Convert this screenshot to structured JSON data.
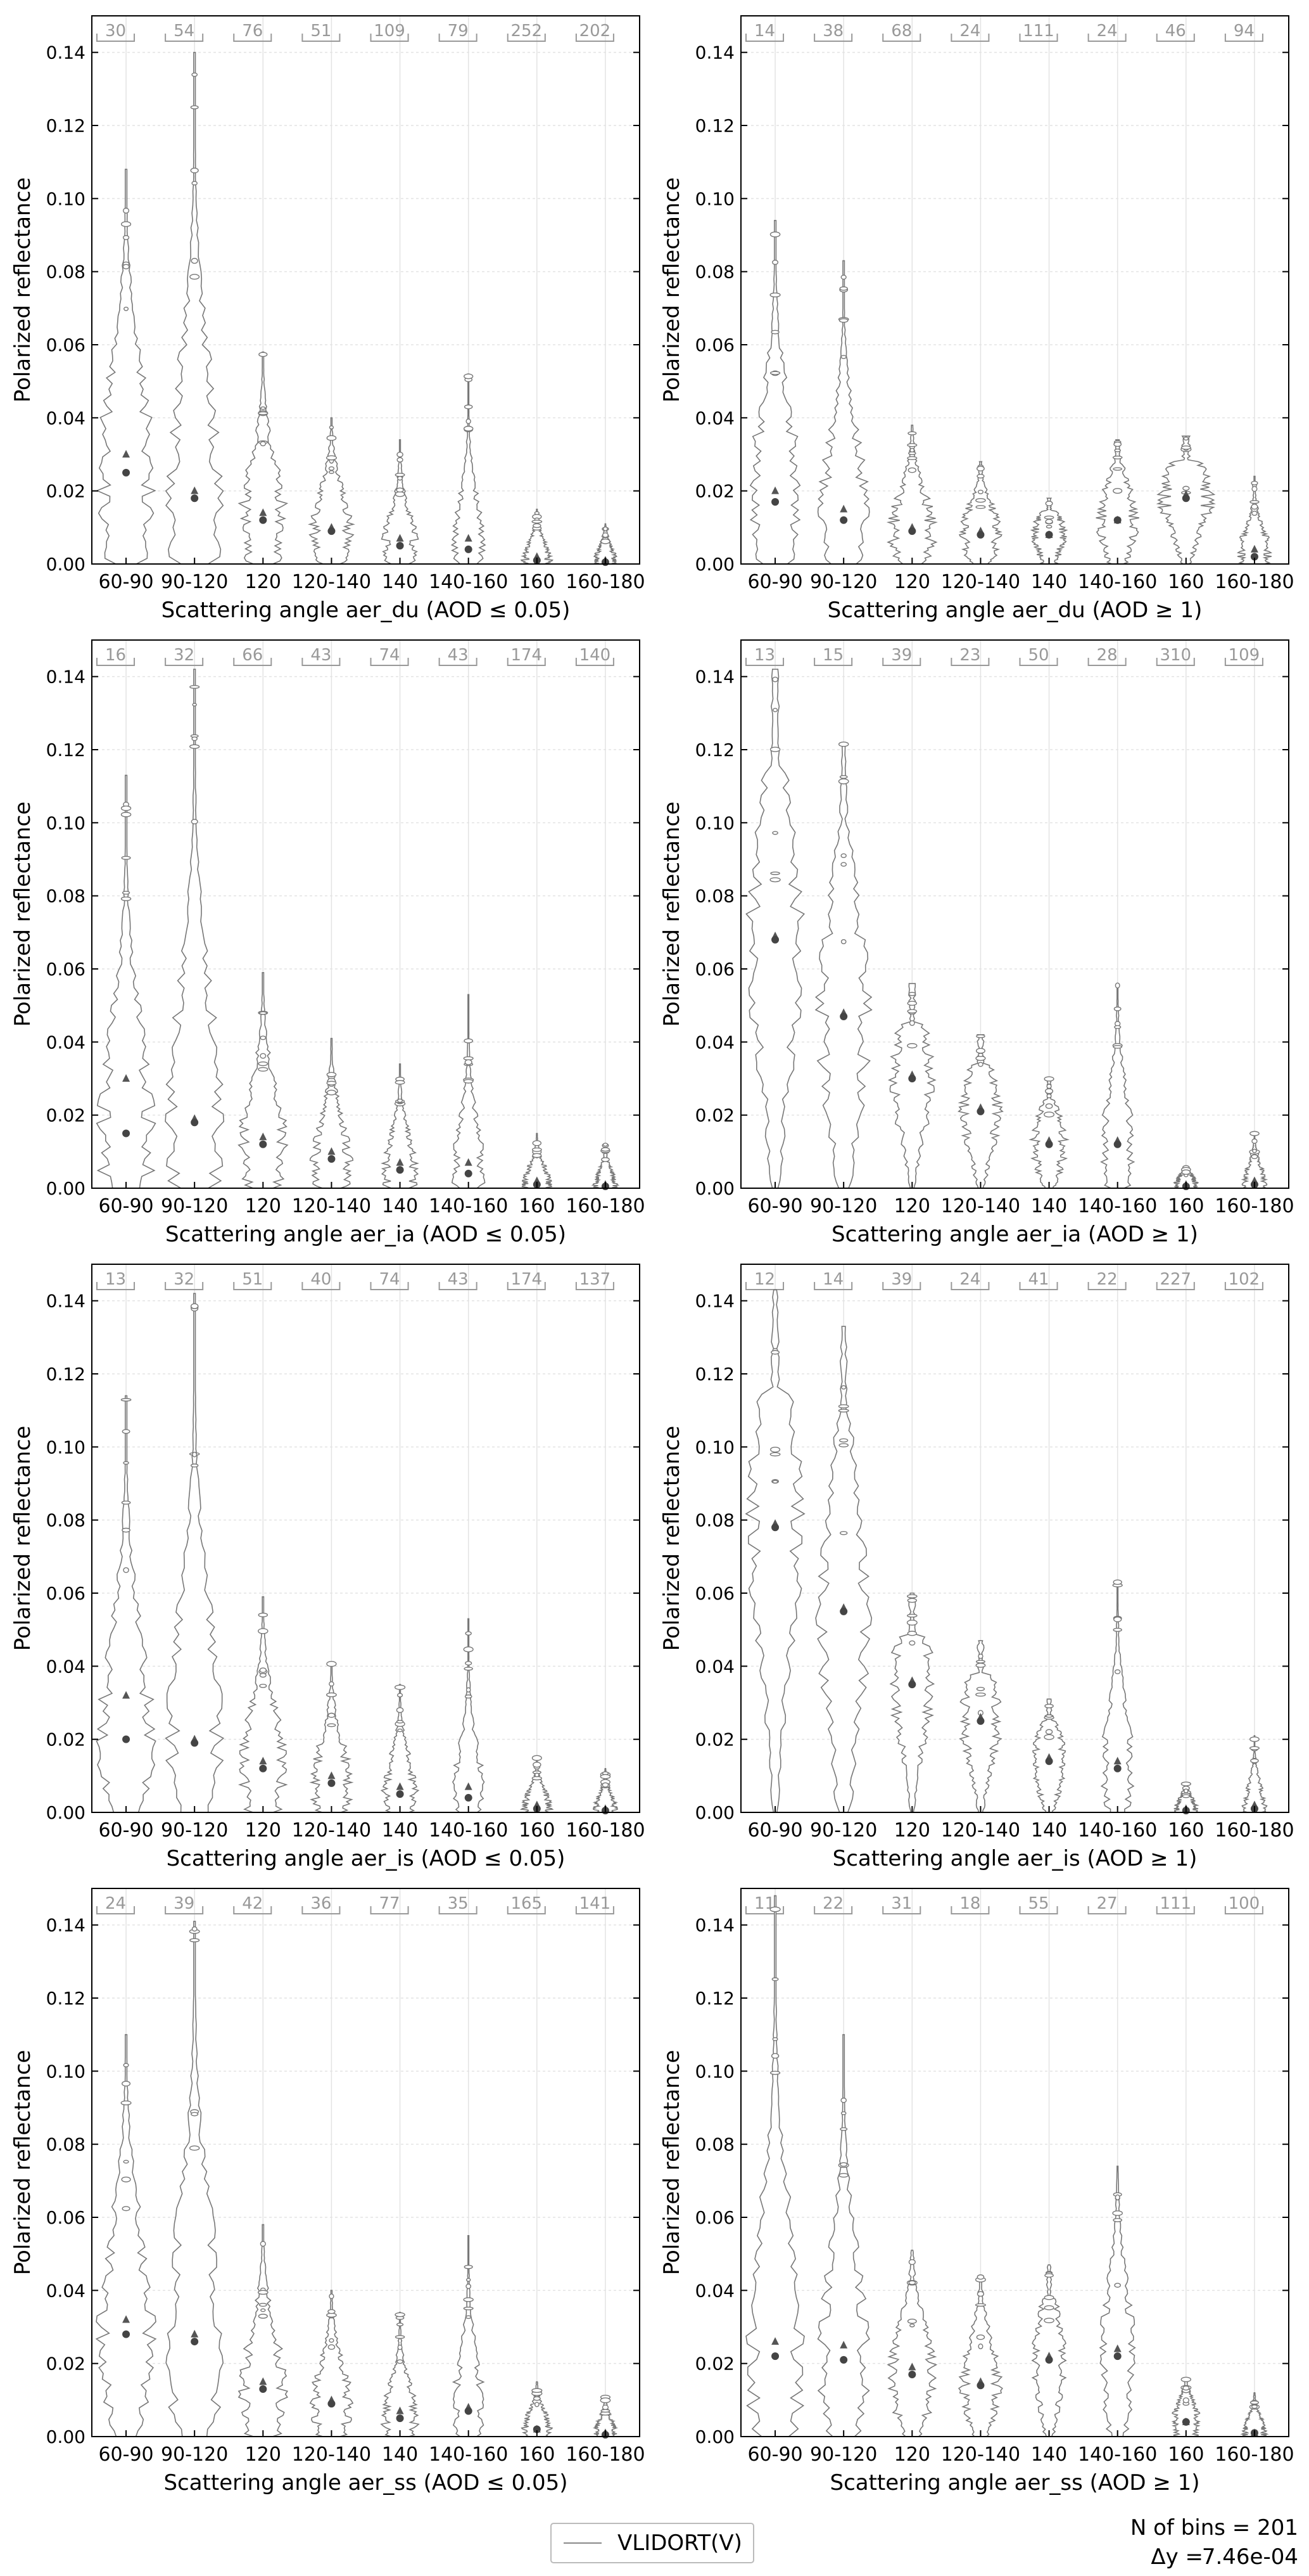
{
  "figure": {
    "legend": {
      "label": "VLIDORT(V)",
      "line_color": "#888888"
    },
    "footer": {
      "bins_text": "N of bins = 201",
      "dy_label": "Δy =",
      "dy_value": "7.46e-04"
    }
  },
  "chart_data": [
    {
      "type": "violin",
      "ylabel": "Polarized reflectance",
      "xlabel": "Scattering angle aer_du (AOD ≤ 0.05)",
      "categories": [
        "60-90",
        "90-120",
        "120",
        "120-140",
        "140",
        "140-160",
        "160",
        "160-180"
      ],
      "counts": [
        "30",
        "54",
        "76",
        "51",
        "109",
        "79",
        "252",
        "202"
      ],
      "ylim": [
        0,
        0.15
      ],
      "yticks": [
        0.0,
        0.02,
        0.04,
        0.06,
        0.08,
        0.1,
        0.12,
        0.14
      ],
      "grid": true,
      "series": [
        {
          "name": "VLIDORT(V)",
          "max": [
            0.108,
            0.14,
            0.058,
            0.04,
            0.034,
            0.052,
            0.015,
            0.011
          ],
          "median": [
            0.025,
            0.018,
            0.012,
            0.009,
            0.005,
            0.004,
            0.001,
            0.0005
          ],
          "mean": [
            0.03,
            0.02,
            0.014,
            0.01,
            0.007,
            0.007,
            0.002,
            0.001
          ],
          "width": [
            0.95,
            0.95,
            0.8,
            0.7,
            0.6,
            0.55,
            0.5,
            0.4
          ]
        }
      ]
    },
    {
      "type": "violin",
      "ylabel": "Polarized reflectance",
      "xlabel": "Scattering angle aer_du (AOD ≥ 1)",
      "categories": [
        "60-90",
        "90-120",
        "120",
        "120-140",
        "140",
        "140-160",
        "160",
        "160-180"
      ],
      "counts": [
        "14",
        "38",
        "68",
        "24",
        "111",
        "24",
        "46",
        "94"
      ],
      "ylim": [
        0,
        0.15
      ],
      "yticks": [
        0.0,
        0.02,
        0.04,
        0.06,
        0.08,
        0.1,
        0.12,
        0.14
      ],
      "grid": true,
      "series": [
        {
          "name": "VLIDORT(V)",
          "max": [
            0.094,
            0.083,
            0.038,
            0.028,
            0.018,
            0.034,
            0.035,
            0.024
          ],
          "median": [
            0.017,
            0.012,
            0.009,
            0.008,
            0.008,
            0.012,
            0.018,
            0.002
          ],
          "mean": [
            0.02,
            0.015,
            0.01,
            0.009,
            0.008,
            0.012,
            0.019,
            0.004
          ],
          "width": [
            0.95,
            0.9,
            0.8,
            0.7,
            0.6,
            0.7,
            0.9,
            0.6
          ]
        }
      ]
    },
    {
      "type": "violin",
      "ylabel": "Polarized reflectance",
      "xlabel": "Scattering angle aer_ia (AOD ≤ 0.05)",
      "categories": [
        "60-90",
        "90-120",
        "120",
        "120-140",
        "140",
        "140-160",
        "160",
        "160-180"
      ],
      "counts": [
        "16",
        "32",
        "66",
        "43",
        "74",
        "43",
        "174",
        "140"
      ],
      "ylim": [
        0,
        0.15
      ],
      "yticks": [
        0.0,
        0.02,
        0.04,
        0.06,
        0.08,
        0.1,
        0.12,
        0.14
      ],
      "grid": true,
      "series": [
        {
          "name": "VLIDORT(V)",
          "max": [
            0.113,
            0.142,
            0.059,
            0.041,
            0.034,
            0.053,
            0.015,
            0.012
          ],
          "median": [
            0.015,
            0.018,
            0.012,
            0.008,
            0.005,
            0.004,
            0.001,
            0.0005
          ],
          "mean": [
            0.03,
            0.019,
            0.014,
            0.01,
            0.007,
            0.007,
            0.002,
            0.001
          ],
          "width": [
            0.95,
            0.95,
            0.8,
            0.7,
            0.6,
            0.55,
            0.5,
            0.4
          ]
        }
      ]
    },
    {
      "type": "violin",
      "ylabel": "Polarized reflectance",
      "xlabel": "Scattering angle aer_ia (AOD ≥ 1)",
      "categories": [
        "60-90",
        "90-120",
        "120",
        "120-140",
        "140",
        "140-160",
        "160",
        "160-180"
      ],
      "counts": [
        "13",
        "15",
        "39",
        "23",
        "50",
        "28",
        "310",
        "109"
      ],
      "ylim": [
        0,
        0.15
      ],
      "yticks": [
        0.0,
        0.02,
        0.04,
        0.06,
        0.08,
        0.1,
        0.12,
        0.14
      ],
      "grid": true,
      "series": [
        {
          "name": "VLIDORT(V)",
          "max": [
            0.142,
            0.122,
            0.056,
            0.042,
            0.03,
            0.056,
            0.006,
            0.015
          ],
          "median": [
            0.068,
            0.047,
            0.03,
            0.021,
            0.012,
            0.012,
            0.0005,
            0.001
          ],
          "mean": [
            0.069,
            0.048,
            0.031,
            0.022,
            0.013,
            0.013,
            0.001,
            0.002
          ],
          "width": [
            0.95,
            0.9,
            0.75,
            0.7,
            0.6,
            0.55,
            0.4,
            0.4
          ]
        }
      ]
    },
    {
      "type": "violin",
      "ylabel": "Polarized reflectance",
      "xlabel": "Scattering angle aer_is (AOD ≤ 0.05)",
      "categories": [
        "60-90",
        "90-120",
        "120",
        "120-140",
        "140",
        "140-160",
        "160",
        "160-180"
      ],
      "counts": [
        "13",
        "32",
        "51",
        "40",
        "74",
        "43",
        "174",
        "137"
      ],
      "ylim": [
        0,
        0.15
      ],
      "yticks": [
        0.0,
        0.02,
        0.04,
        0.06,
        0.08,
        0.1,
        0.12,
        0.14
      ],
      "grid": true,
      "series": [
        {
          "name": "VLIDORT(V)",
          "max": [
            0.114,
            0.142,
            0.059,
            0.041,
            0.035,
            0.053,
            0.015,
            0.012
          ],
          "median": [
            0.02,
            0.019,
            0.012,
            0.008,
            0.005,
            0.004,
            0.001,
            0.0005
          ],
          "mean": [
            0.032,
            0.02,
            0.014,
            0.01,
            0.007,
            0.007,
            0.002,
            0.001
          ],
          "width": [
            0.95,
            0.95,
            0.8,
            0.7,
            0.6,
            0.55,
            0.5,
            0.4
          ]
        }
      ]
    },
    {
      "type": "violin",
      "ylabel": "Polarized reflectance",
      "xlabel": "Scattering angle aer_is (AOD ≥ 1)",
      "categories": [
        "60-90",
        "90-120",
        "120",
        "120-140",
        "140",
        "140-160",
        "160",
        "160-180"
      ],
      "counts": [
        "12",
        "14",
        "39",
        "24",
        "41",
        "22",
        "227",
        "102"
      ],
      "ylim": [
        0,
        0.15
      ],
      "yticks": [
        0.0,
        0.02,
        0.04,
        0.06,
        0.08,
        0.1,
        0.12,
        0.14
      ],
      "grid": true,
      "series": [
        {
          "name": "VLIDORT(V)",
          "max": [
            0.143,
            0.133,
            0.06,
            0.047,
            0.031,
            0.063,
            0.008,
            0.021
          ],
          "median": [
            0.078,
            0.055,
            0.035,
            0.025,
            0.014,
            0.012,
            0.0005,
            0.001
          ],
          "mean": [
            0.079,
            0.056,
            0.036,
            0.026,
            0.015,
            0.014,
            0.001,
            0.002
          ],
          "width": [
            0.95,
            0.9,
            0.75,
            0.7,
            0.6,
            0.55,
            0.4,
            0.4
          ]
        }
      ]
    },
    {
      "type": "violin",
      "ylabel": "Polarized reflectance",
      "xlabel": "Scattering angle aer_ss (AOD ≤ 0.05)",
      "categories": [
        "60-90",
        "90-120",
        "120",
        "120-140",
        "140",
        "140-160",
        "160",
        "160-180"
      ],
      "counts": [
        "24",
        "39",
        "42",
        "36",
        "77",
        "35",
        "165",
        "141"
      ],
      "ylim": [
        0,
        0.15
      ],
      "yticks": [
        0.0,
        0.02,
        0.04,
        0.06,
        0.08,
        0.1,
        0.12,
        0.14
      ],
      "grid": true,
      "series": [
        {
          "name": "VLIDORT(V)",
          "max": [
            0.11,
            0.141,
            0.058,
            0.04,
            0.034,
            0.055,
            0.015,
            0.011
          ],
          "median": [
            0.028,
            0.026,
            0.013,
            0.009,
            0.005,
            0.007,
            0.002,
            0.0005
          ],
          "mean": [
            0.032,
            0.028,
            0.015,
            0.01,
            0.007,
            0.008,
            0.002,
            0.001
          ],
          "width": [
            0.95,
            0.95,
            0.8,
            0.7,
            0.6,
            0.55,
            0.5,
            0.4
          ]
        }
      ]
    },
    {
      "type": "violin",
      "ylabel": "Polarized reflectance",
      "xlabel": "Scattering angle aer_ss (AOD ≥ 1)",
      "categories": [
        "60-90",
        "90-120",
        "120",
        "120-140",
        "140",
        "140-160",
        "160",
        "160-180"
      ],
      "counts": [
        "11",
        "22",
        "31",
        "18",
        "55",
        "27",
        "111",
        "100"
      ],
      "ylim": [
        0,
        0.15
      ],
      "yticks": [
        0.0,
        0.02,
        0.04,
        0.06,
        0.08,
        0.1,
        0.12,
        0.14
      ],
      "grid": true,
      "series": [
        {
          "name": "VLIDORT(V)",
          "max": [
            0.148,
            0.11,
            0.051,
            0.044,
            0.047,
            0.074,
            0.016,
            0.012
          ],
          "median": [
            0.022,
            0.021,
            0.017,
            0.014,
            0.021,
            0.022,
            0.004,
            0.001
          ],
          "mean": [
            0.026,
            0.025,
            0.019,
            0.015,
            0.022,
            0.024,
            0.004,
            0.001
          ],
          "width": [
            0.95,
            0.85,
            0.8,
            0.7,
            0.6,
            0.6,
            0.5,
            0.4
          ]
        }
      ]
    }
  ]
}
